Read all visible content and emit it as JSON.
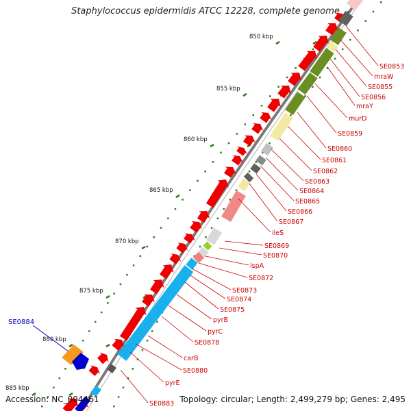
{
  "title": "Staphylococcus epidermidis ATCC 12228, complete genome",
  "footer": {
    "accession": "Accession: NC_004461",
    "topology": "Topology: circular; Length: 2,499,279 bp; Genes: 2,495"
  },
  "colors": {
    "backbone": "#7a7a7a",
    "tick": "#2a7a1a",
    "forward_gene": "#ee0000",
    "label": "#cc0000",
    "highlight_label": "#0000bb",
    "cog_olive": "#6b8e23",
    "cog_yellow": "#f2eaa0",
    "cog_gray": "#9a9a9a",
    "cog_pink": "#f08888",
    "cog_blue": "#1ab0ee",
    "cog_orange": "#f59a1a",
    "cog_dark_blue": "#0000cc"
  },
  "scale_labels": [
    "850 kbp",
    "855 kbp",
    "860 kbp",
    "865 kbp",
    "870 kbp",
    "875 kbp",
    "880 kbp",
    "885 kbp"
  ],
  "gene_labels": [
    {
      "name": "SE0853",
      "color": "red"
    },
    {
      "name": "mraW",
      "color": "red"
    },
    {
      "name": "SE0855",
      "color": "red"
    },
    {
      "name": "SE0856",
      "color": "red"
    },
    {
      "name": "mraY",
      "color": "red"
    },
    {
      "name": "murD",
      "color": "red"
    },
    {
      "name": "SE0859",
      "color": "red"
    },
    {
      "name": "SE0860",
      "color": "red"
    },
    {
      "name": "SE0861",
      "color": "red"
    },
    {
      "name": "SE0862",
      "color": "red"
    },
    {
      "name": "SE0863",
      "color": "red"
    },
    {
      "name": "SE0864",
      "color": "red"
    },
    {
      "name": "SE0865",
      "color": "red"
    },
    {
      "name": "SE0866",
      "color": "red"
    },
    {
      "name": "SE0867",
      "color": "red"
    },
    {
      "name": "ileS",
      "color": "red"
    },
    {
      "name": "SE0869",
      "color": "red"
    },
    {
      "name": "SE0870",
      "color": "red"
    },
    {
      "name": "lspA",
      "color": "red"
    },
    {
      "name": "SE0872",
      "color": "red"
    },
    {
      "name": "SE0873",
      "color": "red"
    },
    {
      "name": "SE0874",
      "color": "red"
    },
    {
      "name": "SE0875",
      "color": "red"
    },
    {
      "name": "pyrB",
      "color": "red"
    },
    {
      "name": "pyrC",
      "color": "red"
    },
    {
      "name": "SE0878",
      "color": "red"
    },
    {
      "name": "carB",
      "color": "red"
    },
    {
      "name": "SE0880",
      "color": "red"
    },
    {
      "name": "pyrE",
      "color": "red"
    },
    {
      "name": "SE0883",
      "color": "red"
    }
  ],
  "highlight_label": {
    "name": "SE0884"
  }
}
